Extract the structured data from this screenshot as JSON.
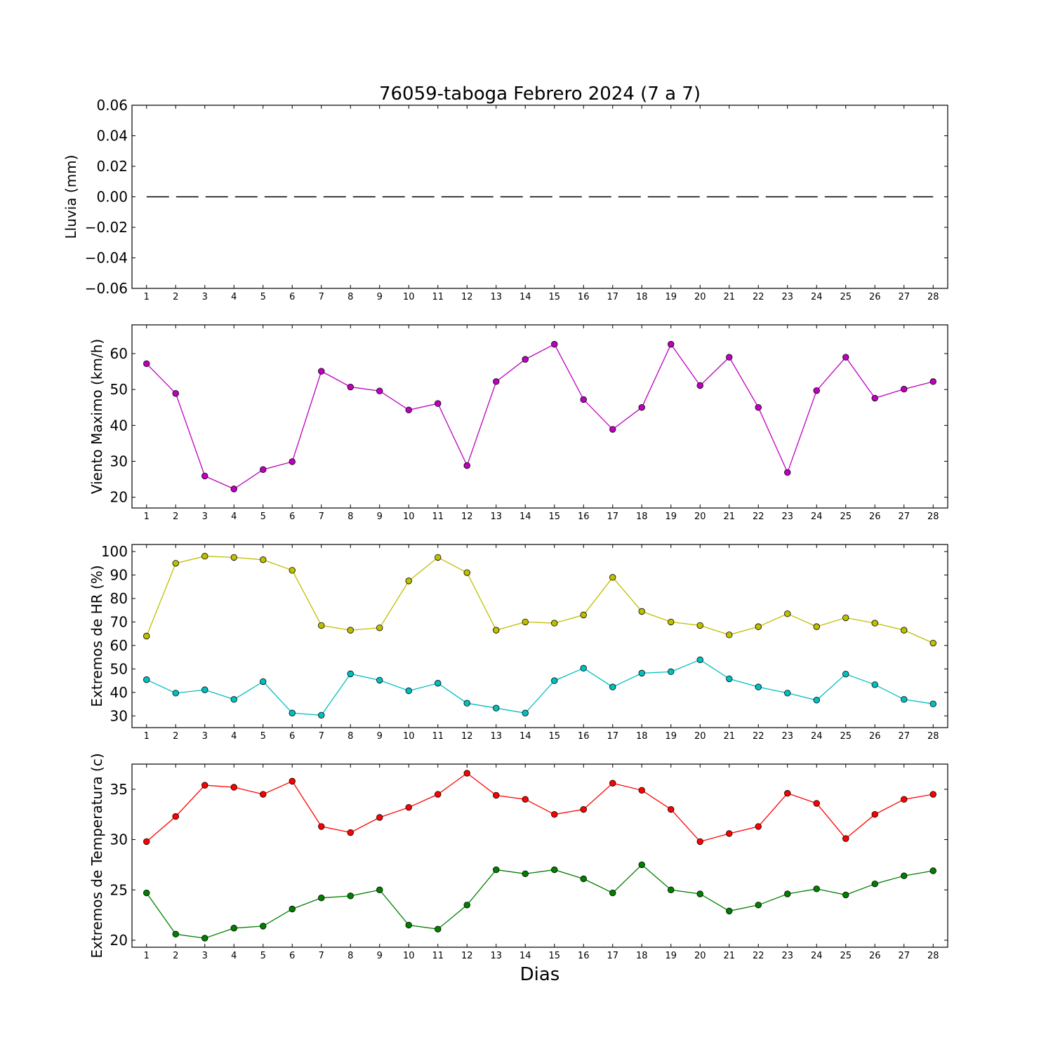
{
  "figure": {
    "title": "76059-taboga Febrero 2024  (7 a 7)",
    "xlabel": "Dias"
  },
  "chart_data": [
    {
      "type": "line",
      "ylabel": "Lluvia (mm)",
      "x": [
        1,
        2,
        3,
        4,
        5,
        6,
        7,
        8,
        9,
        10,
        11,
        12,
        13,
        14,
        15,
        16,
        17,
        18,
        19,
        20,
        21,
        22,
        23,
        24,
        25,
        26,
        27,
        28
      ],
      "xlim": [
        0.5,
        28.5
      ],
      "ylim": [
        -0.06,
        0.06
      ],
      "yticks": [
        -0.06,
        -0.04,
        -0.02,
        0.0,
        0.02,
        0.04,
        0.06
      ],
      "ytick_labels": [
        "−0.06",
        "−0.04",
        "−0.02",
        "0.00",
        "0.02",
        "0.04",
        "0.06"
      ],
      "series": [
        {
          "color": "#000000",
          "line_style": "dashed",
          "marker": "none",
          "values": [
            0,
            0,
            0,
            0,
            0,
            0,
            0,
            0,
            0,
            0,
            0,
            0,
            0,
            0,
            0,
            0,
            0,
            0,
            0,
            0,
            0,
            0,
            0,
            0,
            0,
            0,
            0,
            0
          ]
        }
      ]
    },
    {
      "type": "line",
      "ylabel": "Viento Maximo (km/h)",
      "x": [
        1,
        2,
        3,
        4,
        5,
        6,
        7,
        8,
        9,
        10,
        11,
        12,
        13,
        14,
        15,
        16,
        17,
        18,
        19,
        20,
        21,
        22,
        23,
        24,
        25,
        26,
        27,
        28
      ],
      "xlim": [
        0.5,
        28.5
      ],
      "ylim": [
        17,
        68
      ],
      "yticks": [
        20,
        30,
        40,
        50,
        60
      ],
      "ytick_labels": [
        "20",
        "30",
        "40",
        "50",
        "60"
      ],
      "series": [
        {
          "color": "#bf00bf",
          "line_style": "solid",
          "marker": "circle",
          "values": [
            57.2,
            48.9,
            25.9,
            22.3,
            27.7,
            29.9,
            55.1,
            50.7,
            49.6,
            44.3,
            46.1,
            28.8,
            52.2,
            58.4,
            62.6,
            47.2,
            38.9,
            45.0,
            62.6,
            51.1,
            59.0,
            45.0,
            26.9,
            49.7,
            59.0,
            47.6,
            50.1,
            52.2
          ]
        }
      ]
    },
    {
      "type": "line",
      "ylabel": "Extremos de HR (%)",
      "x": [
        1,
        2,
        3,
        4,
        5,
        6,
        7,
        8,
        9,
        10,
        11,
        12,
        13,
        14,
        15,
        16,
        17,
        18,
        19,
        20,
        21,
        22,
        23,
        24,
        25,
        26,
        27,
        28
      ],
      "xlim": [
        0.5,
        28.5
      ],
      "ylim": [
        25,
        103
      ],
      "yticks": [
        30,
        40,
        50,
        60,
        70,
        80,
        90,
        100
      ],
      "ytick_labels": [
        "30",
        "40",
        "50",
        "60",
        "70",
        "80",
        "90",
        "100"
      ],
      "series": [
        {
          "color": "#bfbf00",
          "line_style": "solid",
          "marker": "circle",
          "values": [
            64,
            95,
            98,
            97.5,
            96.5,
            92,
            68.5,
            66.5,
            67.5,
            87.5,
            97.5,
            91,
            66.5,
            70,
            69.5,
            73,
            89,
            74.5,
            70,
            68.5,
            64.5,
            68,
            73.5,
            68,
            71.8,
            69.5,
            66.5,
            61
          ]
        },
        {
          "color": "#00bfbf",
          "line_style": "solid",
          "marker": "circle",
          "values": [
            45.4,
            39.7,
            41.1,
            37,
            44.6,
            31.2,
            30.3,
            47.9,
            45.2,
            40.7,
            43.9,
            35.4,
            33.3,
            31.2,
            45,
            50.3,
            42.3,
            48.2,
            48.8,
            53.9,
            45.8,
            42.3,
            39.7,
            36.7,
            47.8,
            43.3,
            37,
            35.1
          ]
        }
      ]
    },
    {
      "type": "line",
      "ylabel": "Extremos de Temperatura (c)",
      "x": [
        1,
        2,
        3,
        4,
        5,
        6,
        7,
        8,
        9,
        10,
        11,
        12,
        13,
        14,
        15,
        16,
        17,
        18,
        19,
        20,
        21,
        22,
        23,
        24,
        25,
        26,
        27,
        28
      ],
      "xlim": [
        0.5,
        28.5
      ],
      "ylim": [
        19.3,
        37.5
      ],
      "yticks": [
        20,
        25,
        30,
        35
      ],
      "ytick_labels": [
        "20",
        "25",
        "30",
        "35"
      ],
      "series": [
        {
          "color": "#ff0000",
          "line_style": "solid",
          "marker": "circle",
          "values": [
            29.8,
            32.3,
            35.4,
            35.2,
            34.5,
            35.8,
            31.3,
            30.7,
            32.2,
            33.2,
            34.5,
            36.6,
            34.4,
            34,
            32.5,
            33,
            35.6,
            34.9,
            33,
            29.8,
            30.6,
            31.3,
            34.6,
            33.6,
            30.1,
            32.5,
            34,
            34.5
          ]
        },
        {
          "color": "#007f00",
          "line_style": "solid",
          "marker": "circle",
          "values": [
            24.7,
            20.6,
            20.2,
            21.2,
            21.4,
            23.1,
            24.2,
            24.4,
            25,
            21.5,
            21.1,
            23.5,
            27,
            26.6,
            27,
            26.1,
            24.7,
            27.5,
            25,
            24.6,
            22.9,
            23.5,
            24.6,
            25.1,
            24.5,
            25.6,
            26.4,
            26.9
          ]
        }
      ]
    }
  ]
}
